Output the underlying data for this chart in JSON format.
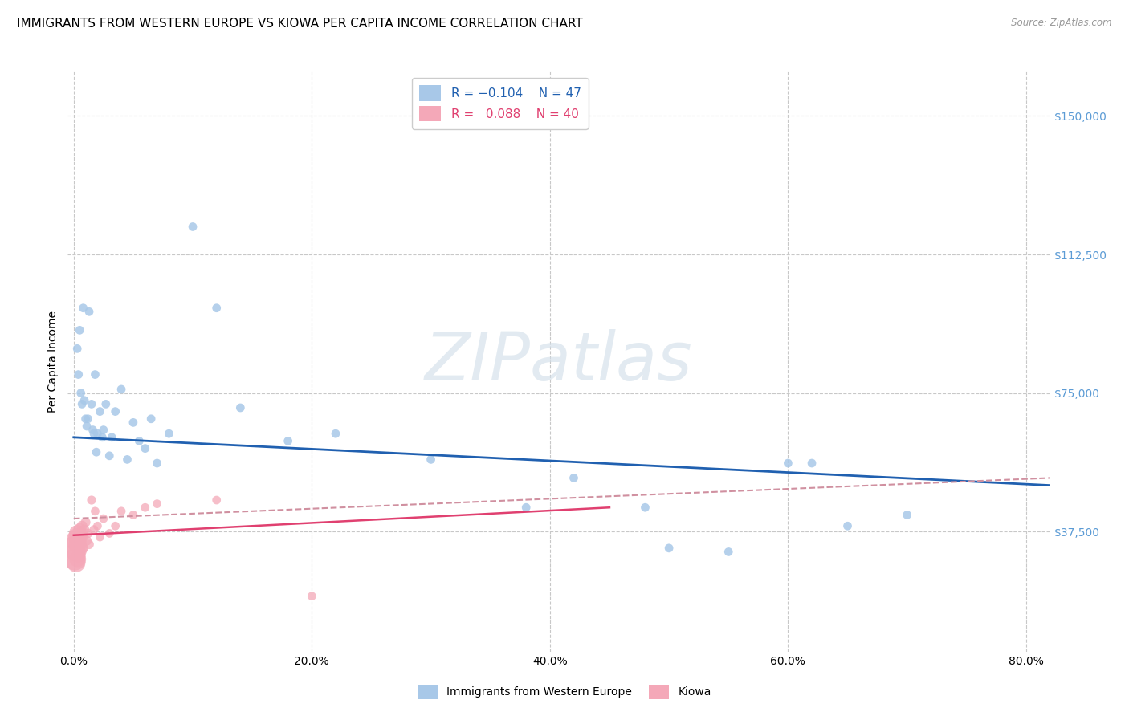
{
  "title": "IMMIGRANTS FROM WESTERN EUROPE VS KIOWA PER CAPITA INCOME CORRELATION CHART",
  "source": "Source: ZipAtlas.com",
  "ylabel": "Per Capita Income",
  "xlabel_ticks": [
    "0.0%",
    "20.0%",
    "40.0%",
    "60.0%",
    "80.0%"
  ],
  "xlabel_tick_vals": [
    0.0,
    0.2,
    0.4,
    0.6,
    0.8
  ],
  "ytick_labels": [
    "$37,500",
    "$75,000",
    "$112,500",
    "$150,000"
  ],
  "ytick_vals": [
    37500,
    75000,
    112500,
    150000
  ],
  "ylim": [
    5000,
    162000
  ],
  "xlim": [
    -0.005,
    0.82
  ],
  "legend_labels": [
    "Immigrants from Western Europe",
    "Kiowa"
  ],
  "watermark": "ZIPatlas",
  "blue_scatter": {
    "x": [
      0.003,
      0.004,
      0.005,
      0.006,
      0.007,
      0.008,
      0.009,
      0.01,
      0.011,
      0.012,
      0.013,
      0.015,
      0.016,
      0.017,
      0.018,
      0.019,
      0.02,
      0.022,
      0.024,
      0.025,
      0.027,
      0.03,
      0.032,
      0.035,
      0.04,
      0.045,
      0.05,
      0.055,
      0.06,
      0.065,
      0.07,
      0.08,
      0.1,
      0.12,
      0.14,
      0.18,
      0.22,
      0.3,
      0.38,
      0.42,
      0.48,
      0.5,
      0.55,
      0.6,
      0.62,
      0.65,
      0.7
    ],
    "y": [
      87000,
      80000,
      92000,
      75000,
      72000,
      98000,
      73000,
      68000,
      66000,
      68000,
      97000,
      72000,
      65000,
      64000,
      80000,
      59000,
      64000,
      70000,
      63000,
      65000,
      72000,
      58000,
      63000,
      70000,
      76000,
      57000,
      67000,
      62000,
      60000,
      68000,
      56000,
      64000,
      120000,
      98000,
      71000,
      62000,
      64000,
      57000,
      44000,
      52000,
      44000,
      33000,
      32000,
      56000,
      56000,
      39000,
      42000
    ],
    "sizes": [
      60,
      60,
      60,
      60,
      60,
      60,
      60,
      60,
      60,
      60,
      60,
      60,
      60,
      60,
      60,
      60,
      60,
      60,
      60,
      60,
      60,
      60,
      60,
      60,
      60,
      60,
      60,
      60,
      60,
      60,
      60,
      60,
      60,
      60,
      60,
      60,
      60,
      60,
      60,
      60,
      60,
      60,
      60,
      60,
      60,
      60,
      60
    ]
  },
  "pink_scatter": {
    "x": [
      0.001,
      0.001,
      0.002,
      0.002,
      0.002,
      0.003,
      0.003,
      0.003,
      0.003,
      0.004,
      0.004,
      0.004,
      0.005,
      0.005,
      0.005,
      0.006,
      0.006,
      0.007,
      0.007,
      0.008,
      0.008,
      0.009,
      0.01,
      0.011,
      0.012,
      0.013,
      0.015,
      0.017,
      0.018,
      0.02,
      0.022,
      0.025,
      0.03,
      0.035,
      0.04,
      0.05,
      0.06,
      0.07,
      0.12,
      0.2
    ],
    "y": [
      33000,
      30000,
      35000,
      32000,
      29000,
      36000,
      34000,
      37000,
      30000,
      35000,
      33000,
      31000,
      38000,
      36000,
      31000,
      36000,
      34000,
      39000,
      37000,
      33000,
      36000,
      38000,
      40000,
      35000,
      37000,
      34000,
      46000,
      38000,
      43000,
      39000,
      36000,
      41000,
      37000,
      39000,
      43000,
      42000,
      44000,
      45000,
      46000,
      20000
    ],
    "sizes": [
      500,
      400,
      350,
      300,
      280,
      260,
      240,
      220,
      200,
      180,
      160,
      140,
      130,
      120,
      110,
      100,
      95,
      90,
      85,
      80,
      80,
      80,
      75,
      75,
      70,
      70,
      65,
      65,
      60,
      60,
      60,
      60,
      60,
      60,
      60,
      60,
      60,
      60,
      60,
      60
    ]
  },
  "blue_line": {
    "x": [
      0.0,
      0.82
    ],
    "y": [
      63000,
      50000
    ]
  },
  "pink_line": {
    "x": [
      0.0,
      0.45
    ],
    "y": [
      36500,
      44000
    ]
  },
  "pink_dashed_line": {
    "x": [
      0.0,
      0.82
    ],
    "y": [
      41000,
      52000
    ]
  },
  "scatter_blue_color": "#a8c8e8",
  "scatter_pink_color": "#f4a8b8",
  "line_blue_color": "#2060b0",
  "line_pink_color": "#e04070",
  "line_pink_dashed_color": "#d090a0",
  "grid_color": "#c8c8c8",
  "background_color": "#ffffff",
  "title_fontsize": 11,
  "axis_label_fontsize": 10,
  "tick_fontsize": 10,
  "right_tick_color": "#5b9bd5",
  "watermark_color": "#d0dde8",
  "watermark_fontsize": 60
}
